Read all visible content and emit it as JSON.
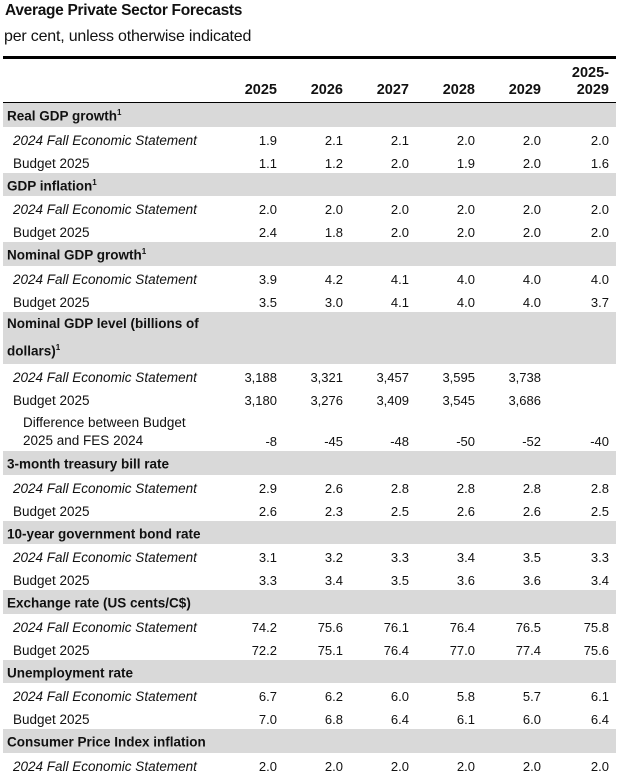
{
  "title": "Average Private Sector Forecasts",
  "subtitle": "per cent, unless otherwise indicated",
  "columns": [
    "2025",
    "2026",
    "2027",
    "2028",
    "2029",
    "2025-\n2029"
  ],
  "sections": [
    {
      "title": "Real GDP growth",
      "sup": "1",
      "rows": [
        {
          "label": "2024 Fall Economic Statement",
          "italic": true,
          "values": [
            "1.9",
            "2.1",
            "2.1",
            "2.0",
            "2.0",
            "2.0"
          ]
        },
        {
          "label": "Budget 2025",
          "values": [
            "1.1",
            "1.2",
            "2.0",
            "1.9",
            "2.0",
            "1.6"
          ]
        }
      ]
    },
    {
      "title": "GDP inflation",
      "sup": "1",
      "rows": [
        {
          "label": "2024 Fall Economic Statement",
          "italic": true,
          "values": [
            "2.0",
            "2.0",
            "2.0",
            "2.0",
            "2.0",
            "2.0"
          ]
        },
        {
          "label": "Budget 2025",
          "values": [
            "2.4",
            "1.8",
            "2.0",
            "2.0",
            "2.0",
            "2.0"
          ]
        }
      ]
    },
    {
      "title": "Nominal GDP growth",
      "sup": "1",
      "rows": [
        {
          "label": "2024 Fall Economic Statement",
          "italic": true,
          "values": [
            "3.9",
            "4.2",
            "4.1",
            "4.0",
            "4.0",
            "4.0"
          ]
        },
        {
          "label": "Budget 2025",
          "values": [
            "3.5",
            "3.0",
            "4.1",
            "4.0",
            "4.0",
            "3.7"
          ]
        }
      ]
    },
    {
      "title": "Nominal GDP level (billions of dollars)",
      "sup": "1",
      "tall": true,
      "rows": [
        {
          "label": "2024 Fall Economic Statement",
          "italic": true,
          "values": [
            "3,188",
            "3,321",
            "3,457",
            "3,595",
            "3,738",
            ""
          ]
        },
        {
          "label": "Budget 2025",
          "values": [
            "3,180",
            "3,276",
            "3,409",
            "3,545",
            "3,686",
            ""
          ]
        },
        {
          "label": "Difference between Budget 2025 and FES 2024",
          "indent": true,
          "values": [
            "-8",
            "-45",
            "-48",
            "-50",
            "-52",
            "-40"
          ]
        }
      ]
    },
    {
      "title": "3-month treasury bill rate",
      "sup": "",
      "rows": [
        {
          "label": "2024 Fall Economic Statement",
          "italic": true,
          "values": [
            "2.9",
            "2.6",
            "2.8",
            "2.8",
            "2.8",
            "2.8"
          ]
        },
        {
          "label": "Budget 2025",
          "values": [
            "2.6",
            "2.3",
            "2.5",
            "2.6",
            "2.6",
            "2.5"
          ]
        }
      ]
    },
    {
      "title": "10-year government bond rate",
      "sup": "",
      "rows": [
        {
          "label": "2024 Fall Economic Statement",
          "italic": true,
          "values": [
            "3.1",
            "3.2",
            "3.3",
            "3.4",
            "3.5",
            "3.3"
          ]
        },
        {
          "label": "Budget 2025",
          "values": [
            "3.3",
            "3.4",
            "3.5",
            "3.6",
            "3.6",
            "3.4"
          ]
        }
      ]
    },
    {
      "title": "Exchange rate (US cents/C$)",
      "sup": "",
      "rows": [
        {
          "label": "2024 Fall Economic Statement",
          "italic": true,
          "values": [
            "74.2",
            "75.6",
            "76.1",
            "76.4",
            "76.5",
            "75.8"
          ]
        },
        {
          "label": "Budget 2025",
          "values": [
            "72.2",
            "75.1",
            "76.4",
            "77.0",
            "77.4",
            "75.6"
          ]
        }
      ]
    },
    {
      "title": "Unemployment rate",
      "sup": "",
      "rows": [
        {
          "label": "2024 Fall Economic Statement",
          "italic": true,
          "values": [
            "6.7",
            "6.2",
            "6.0",
            "5.8",
            "5.7",
            "6.1"
          ]
        },
        {
          "label": "Budget 2025",
          "values": [
            "7.0",
            "6.8",
            "6.4",
            "6.1",
            "6.0",
            "6.4"
          ]
        }
      ]
    },
    {
      "title": "Consumer Price Index inflation",
      "sup": "",
      "rows": [
        {
          "label": "2024 Fall Economic Statement",
          "italic": true,
          "values": [
            "2.0",
            "2.0",
            "2.0",
            "2.0",
            "2.0",
            "2.0"
          ]
        }
      ]
    }
  ]
}
